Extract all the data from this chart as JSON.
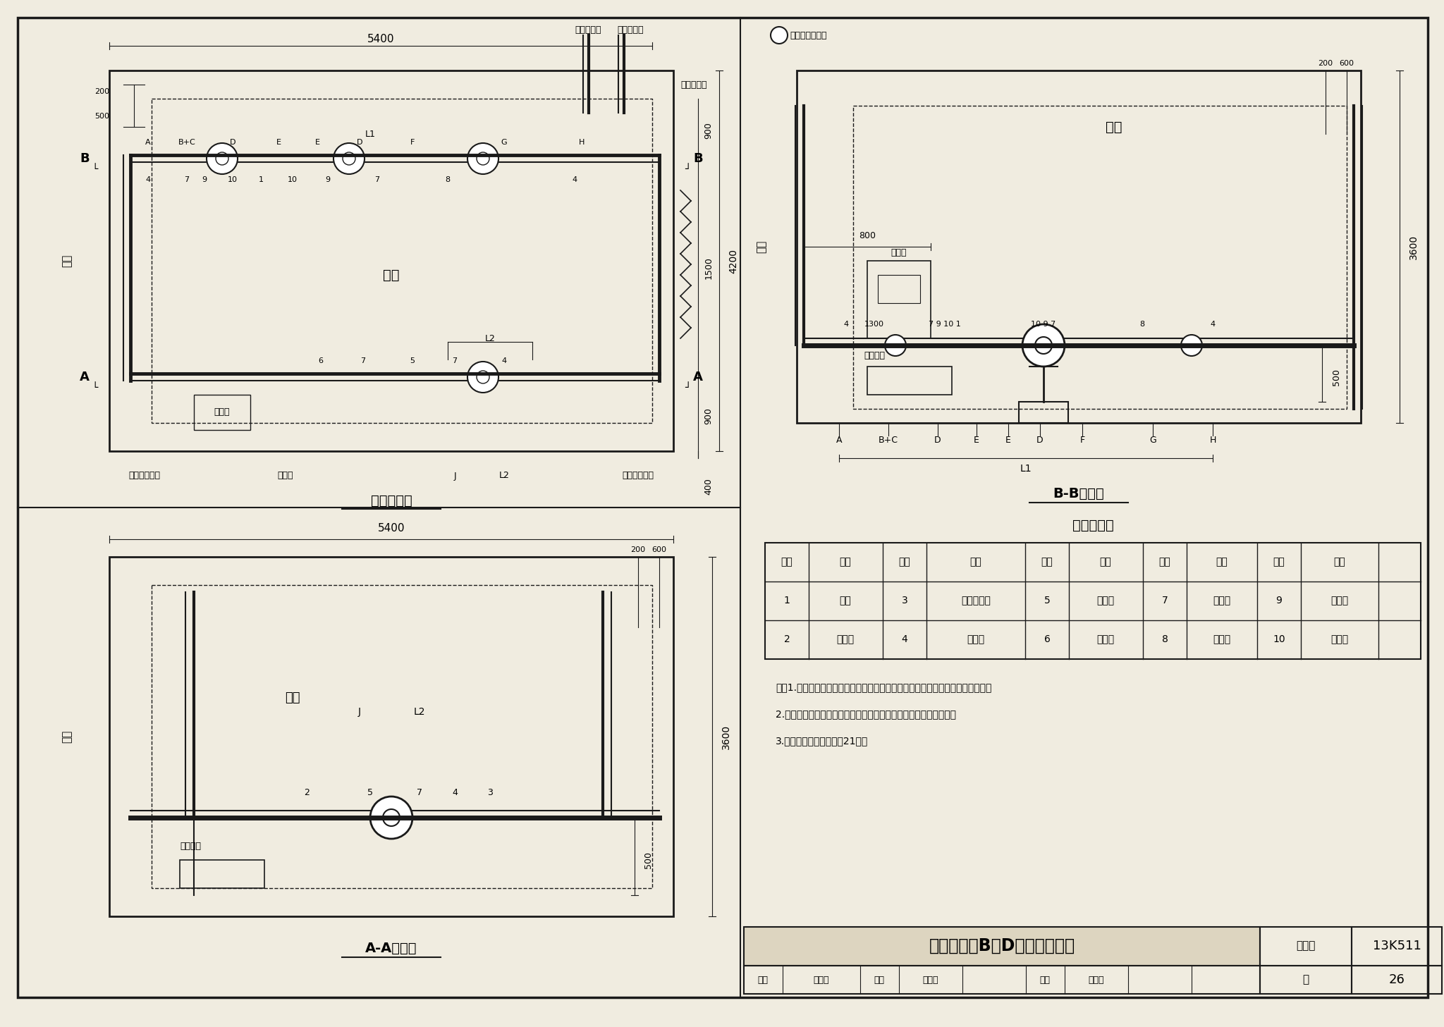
{
  "bg_color": "#f0ece0",
  "line_color": "#1a1a1a",
  "table_title": "名称对照表",
  "table_headers": [
    "编号",
    "名称",
    "编号",
    "名称",
    "编号",
    "名称",
    "编号",
    "名称",
    "编号",
    "名称"
  ],
  "table_row1": [
    "1",
    "水泵",
    "3",
    "温度传感器",
    "5",
    "过滤器",
    "7",
    "压力表",
    "9",
    "软接头"
  ],
  "table_row2": [
    "2",
    "能量计",
    "4",
    "截止阀",
    "6",
    "温度计",
    "8",
    "止回阀",
    "10",
    "变径管"
  ],
  "notes": [
    "注：1.水泵弹性接头可用橡胶软接头也可用金属软管连接。具体做法以设计为准。",
    "2.水泵与基础连接仅为示意，惰性块安装或隔振器减振以设计为准。",
    "3.安装尺寸详见本图集第21页。"
  ],
  "bottom_title": "多级泵系统B、D型机房安装图",
  "bottom_label1": "图集号",
  "bottom_val1": "13K511",
  "bottom_label2": "页",
  "bottom_val2": "26",
  "plan_title": "机房平面图",
  "aa_title": "A-A剖面图",
  "bb_title": "B-B剖面图",
  "sign_row": [
    "审核",
    "寇趋美",
    "",
    "校对",
    "蓬永刚",
    "",
    "设计",
    "马振周",
    "",
    "页",
    "26"
  ]
}
